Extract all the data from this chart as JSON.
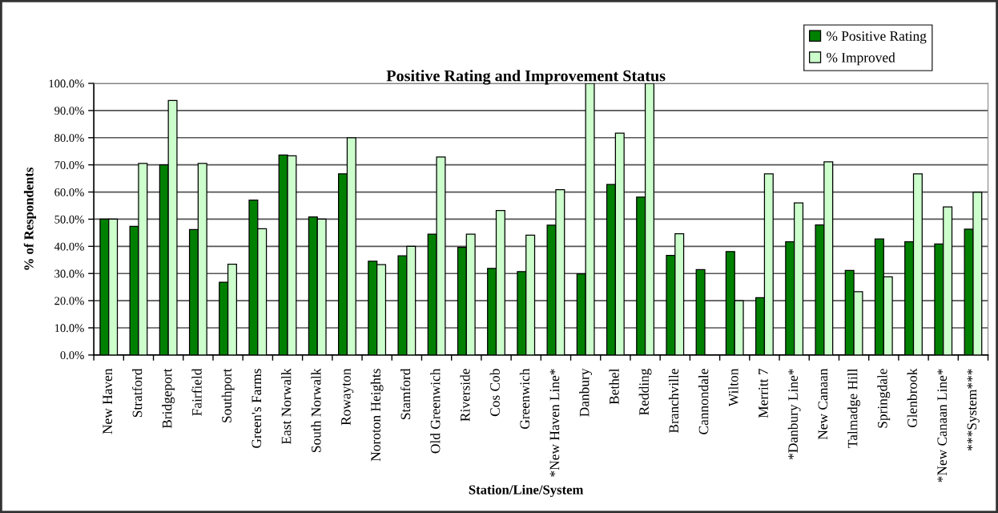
{
  "chart_data": {
    "type": "bar",
    "title": "Positive Rating and Improvement Status",
    "xlabel": "Station/Line/System",
    "ylabel": "% of Respondents",
    "categories": [
      "New Haven",
      "Stratford",
      "Bridgeport",
      "Fairfield",
      "Southport",
      "Green's Farms",
      "East Norwalk",
      "South Norwalk",
      "Rowayton",
      "Noroton Heights",
      "Stamford",
      "Old Greenwich",
      "Riverside",
      "Cos Cob",
      "Greenwich",
      "*New Haven Line*",
      "Danbury",
      "Bethel",
      "Redding",
      "Branchville",
      "Cannondale",
      "Wilton",
      "Merritt 7",
      "*Danbury Line*",
      "New Canaan",
      "Talmadge Hill",
      "Springdale",
      "Glenbrook",
      "*New Canaan Line*",
      "***System***"
    ],
    "series": [
      {
        "name": "% Positive Rating",
        "color": "#008000",
        "values": [
          50,
          47.4,
          70,
          46.2,
          26.8,
          57,
          73.6,
          50.8,
          66.7,
          34.5,
          36.5,
          44.5,
          39.6,
          31.9,
          30.7,
          47.8,
          29.9,
          62.8,
          58.1,
          36.7,
          31.4,
          38.1,
          21.1,
          41.7,
          47.9,
          31.1,
          42.7,
          41.7,
          40.9,
          46.3
        ]
      },
      {
        "name": "% Improved",
        "color": "#ccffcc",
        "values": [
          50,
          70.5,
          93.7,
          70.5,
          33.4,
          46.5,
          73.3,
          50,
          80,
          33.3,
          40,
          72.9,
          44.5,
          53.2,
          44.1,
          60.9,
          100,
          81.7,
          100,
          44.6,
          null,
          20,
          66.7,
          56,
          71.1,
          23.3,
          28.8,
          66.7,
          54.5,
          59.9
        ]
      }
    ],
    "ylim": [
      0,
      100
    ],
    "yticks": [
      {
        "value": 0,
        "label": "0.0%"
      },
      {
        "value": 10,
        "label": "10.0%"
      },
      {
        "value": 20,
        "label": "20.0%"
      },
      {
        "value": 30,
        "label": "30.0%"
      },
      {
        "value": 40,
        "label": "40.0%"
      },
      {
        "value": 50,
        "label": "50.0%"
      },
      {
        "value": 60,
        "label": "60.0%"
      },
      {
        "value": 70,
        "label": "70.0%"
      },
      {
        "value": 80,
        "label": "80.0%"
      },
      {
        "value": 90,
        "label": "90.0%"
      },
      {
        "value": 100,
        "label": "100.0%"
      }
    ],
    "grid": "y",
    "legend": "top right"
  }
}
